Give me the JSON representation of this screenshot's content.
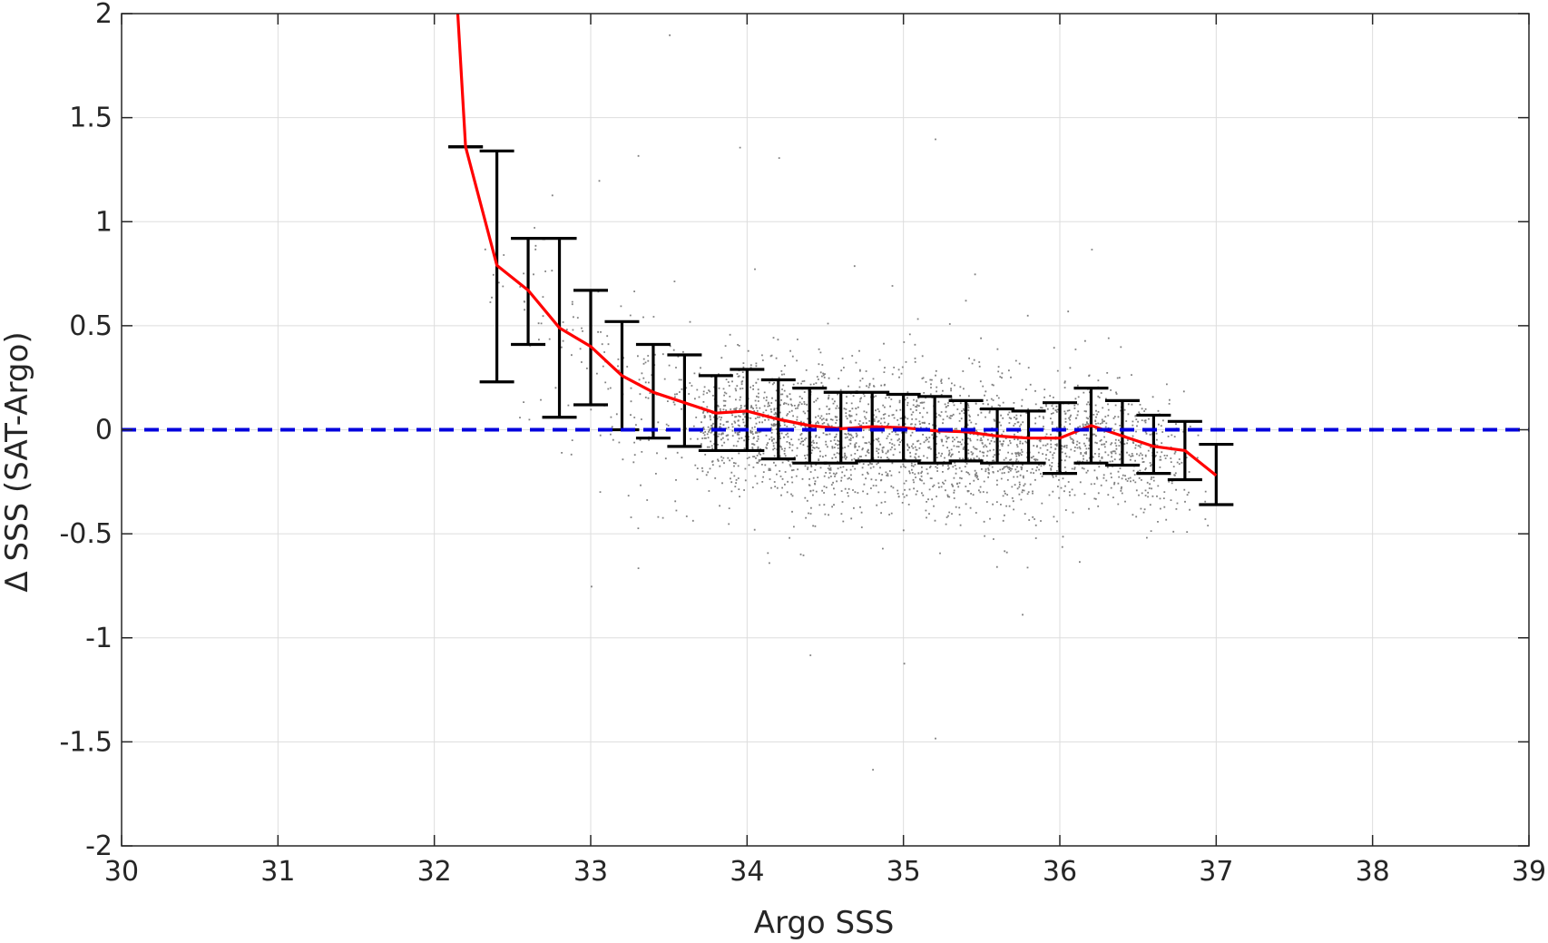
{
  "chart_data": {
    "type": "scatter",
    "title": "",
    "xlabel": "Argo SSS",
    "ylabel": "Δ SSS (SAT-Argo)",
    "xlim": [
      30,
      39
    ],
    "ylim": [
      -2,
      2
    ],
    "xticks": [
      30,
      31,
      32,
      33,
      34,
      35,
      36,
      37,
      38,
      39
    ],
    "yticks": [
      -2,
      -1.5,
      -1,
      -0.5,
      0,
      0.5,
      1,
      1.5,
      2
    ],
    "grid": true,
    "colors": {
      "scatter": "#808080",
      "mean_line": "#ff0000",
      "error_bars": "#000000",
      "zero_line": "#0000dd",
      "grid": "#dddddd",
      "axes": "#262626"
    },
    "scatter_cloud": {
      "description_points": "dense cloud of individual matchups",
      "x_range": [
        32.3,
        37.0
      ],
      "outliers": [
        [
          33.5,
          1.9
        ],
        [
          35.2,
          1.4
        ],
        [
          33.95,
          1.36
        ],
        [
          33.3,
          1.32
        ],
        [
          34.2,
          1.31
        ],
        [
          33.05,
          1.2
        ],
        [
          32.75,
          1.13
        ],
        [
          34.8,
          -1.63
        ],
        [
          35.2,
          -1.48
        ],
        [
          35.0,
          -1.12
        ],
        [
          34.4,
          -1.08
        ],
        [
          33.0,
          -0.75
        ],
        [
          36.2,
          0.87
        ]
      ]
    },
    "series": [
      {
        "type": "line",
        "x": [
          32.15,
          32.2,
          32.4,
          32.6,
          32.8,
          33.0,
          33.2,
          33.4,
          33.6,
          33.8,
          34.0,
          34.2,
          34.4,
          34.6,
          34.8,
          35.0,
          35.2,
          35.4,
          35.6,
          35.8,
          36.0,
          36.2,
          36.4,
          36.6,
          36.8,
          37.0
        ],
        "y": [
          2.0,
          1.36,
          0.79,
          0.67,
          0.49,
          0.4,
          0.26,
          0.18,
          0.13,
          0.08,
          0.09,
          0.05,
          0.02,
          0.005,
          0.015,
          0.01,
          -0.005,
          -0.01,
          -0.03,
          -0.04,
          -0.04,
          0.02,
          -0.03,
          -0.08,
          -0.1,
          -0.22
        ]
      },
      {
        "type": "errorbar",
        "x": [
          32.2,
          32.4,
          32.6,
          32.8,
          33.0,
          33.2,
          33.4,
          33.6,
          33.8,
          34.0,
          34.2,
          34.4,
          34.6,
          34.8,
          35.0,
          35.2,
          35.4,
          35.6,
          35.8,
          36.0,
          36.2,
          36.4,
          36.6,
          36.8,
          37.0
        ],
        "y": [
          1.36,
          0.79,
          0.67,
          0.49,
          0.4,
          0.26,
          0.18,
          0.13,
          0.08,
          0.09,
          0.05,
          0.02,
          0.005,
          0.015,
          0.01,
          -0.005,
          -0.01,
          -0.03,
          -0.04,
          -0.04,
          0.02,
          -0.03,
          -0.08,
          -0.1,
          -0.22
        ],
        "upper": [
          1.36,
          1.34,
          0.92,
          0.92,
          0.67,
          0.52,
          0.41,
          0.36,
          0.26,
          0.29,
          0.24,
          0.2,
          0.18,
          0.18,
          0.17,
          0.16,
          0.14,
          0.1,
          0.09,
          0.13,
          0.2,
          0.14,
          0.07,
          0.04,
          -0.07
        ],
        "lower": [
          1.36,
          0.23,
          0.41,
          0.06,
          0.12,
          0.0,
          -0.04,
          -0.08,
          -0.1,
          -0.1,
          -0.14,
          -0.16,
          -0.16,
          -0.15,
          -0.15,
          -0.16,
          -0.15,
          -0.16,
          -0.16,
          -0.21,
          -0.16,
          -0.17,
          -0.21,
          -0.24,
          -0.36
        ]
      },
      {
        "type": "hline",
        "y": 0,
        "style": "dashed"
      }
    ]
  }
}
